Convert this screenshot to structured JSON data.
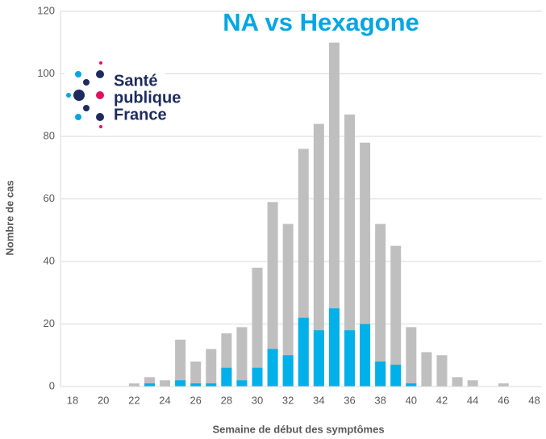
{
  "chart_data": {
    "type": "bar",
    "title": "NA vs Hexagone",
    "x_label": "Semaine de début des symptômes",
    "y_label": "Nombre de cas",
    "logo": [
      "Santé",
      "publique",
      "France"
    ],
    "categories": [
      18,
      null,
      20,
      null,
      22,
      null,
      24,
      null,
      26,
      null,
      28,
      null,
      30,
      null,
      32,
      null,
      34,
      null,
      36,
      null,
      38,
      null,
      40,
      null,
      42,
      null,
      44,
      null,
      46,
      null,
      48
    ],
    "series": [
      {
        "color": "#bfbfbf",
        "values": [
          0,
          0,
          0,
          0,
          1,
          3,
          2,
          15,
          8,
          12,
          17,
          19,
          38,
          59,
          52,
          76,
          84,
          110,
          87,
          78,
          52,
          45,
          19,
          11,
          10,
          3,
          2,
          0,
          1,
          0,
          0
        ]
      },
      {
        "color": "#00b0e8",
        "values": [
          0,
          0,
          0,
          0,
          0,
          1,
          0,
          2,
          1,
          1,
          6,
          2,
          6,
          12,
          10,
          22,
          18,
          25,
          18,
          20,
          8,
          7,
          1,
          0,
          0,
          0,
          0,
          0,
          0,
          0,
          0
        ]
      }
    ],
    "ylim": [
      0,
      120
    ],
    "yticks": [
      0,
      20,
      40,
      60,
      80,
      100,
      120
    ],
    "grid": true
  }
}
